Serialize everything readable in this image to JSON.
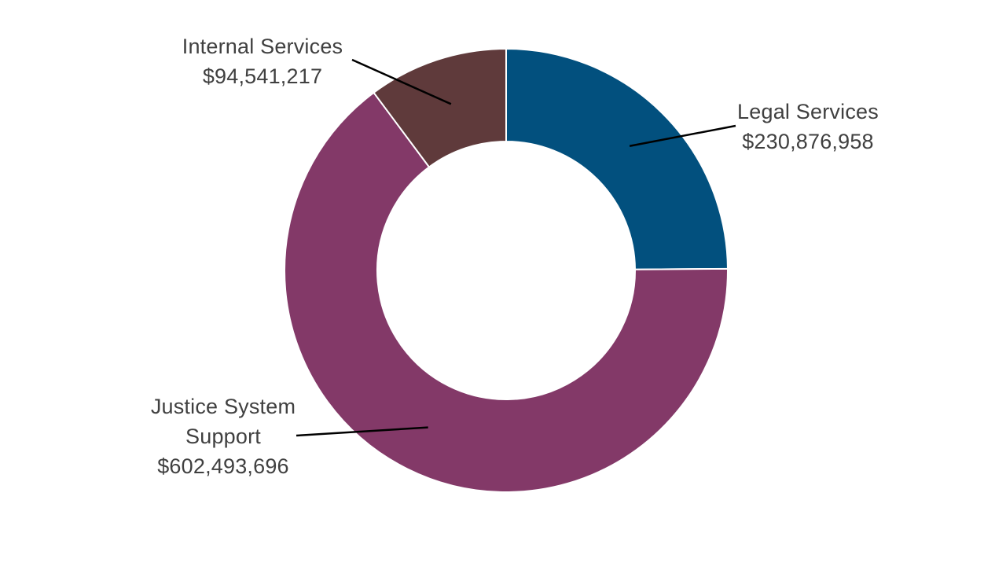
{
  "chart_data": {
    "type": "pie",
    "variant": "donut",
    "title": "",
    "legend": "none",
    "slices": [
      {
        "label": "Legal Services",
        "value": 230876958,
        "value_label": "$230,876,958",
        "color": "#02507e"
      },
      {
        "label": "Justice System Support",
        "label_lines": [
          "Justice System",
          "Support"
        ],
        "value": 602493696,
        "value_label": "$602,493,696",
        "color": "#833968"
      },
      {
        "label": "Internal Services",
        "value": 94541217,
        "value_label": "$94,541,217",
        "color": "#5f3a3b"
      }
    ]
  }
}
